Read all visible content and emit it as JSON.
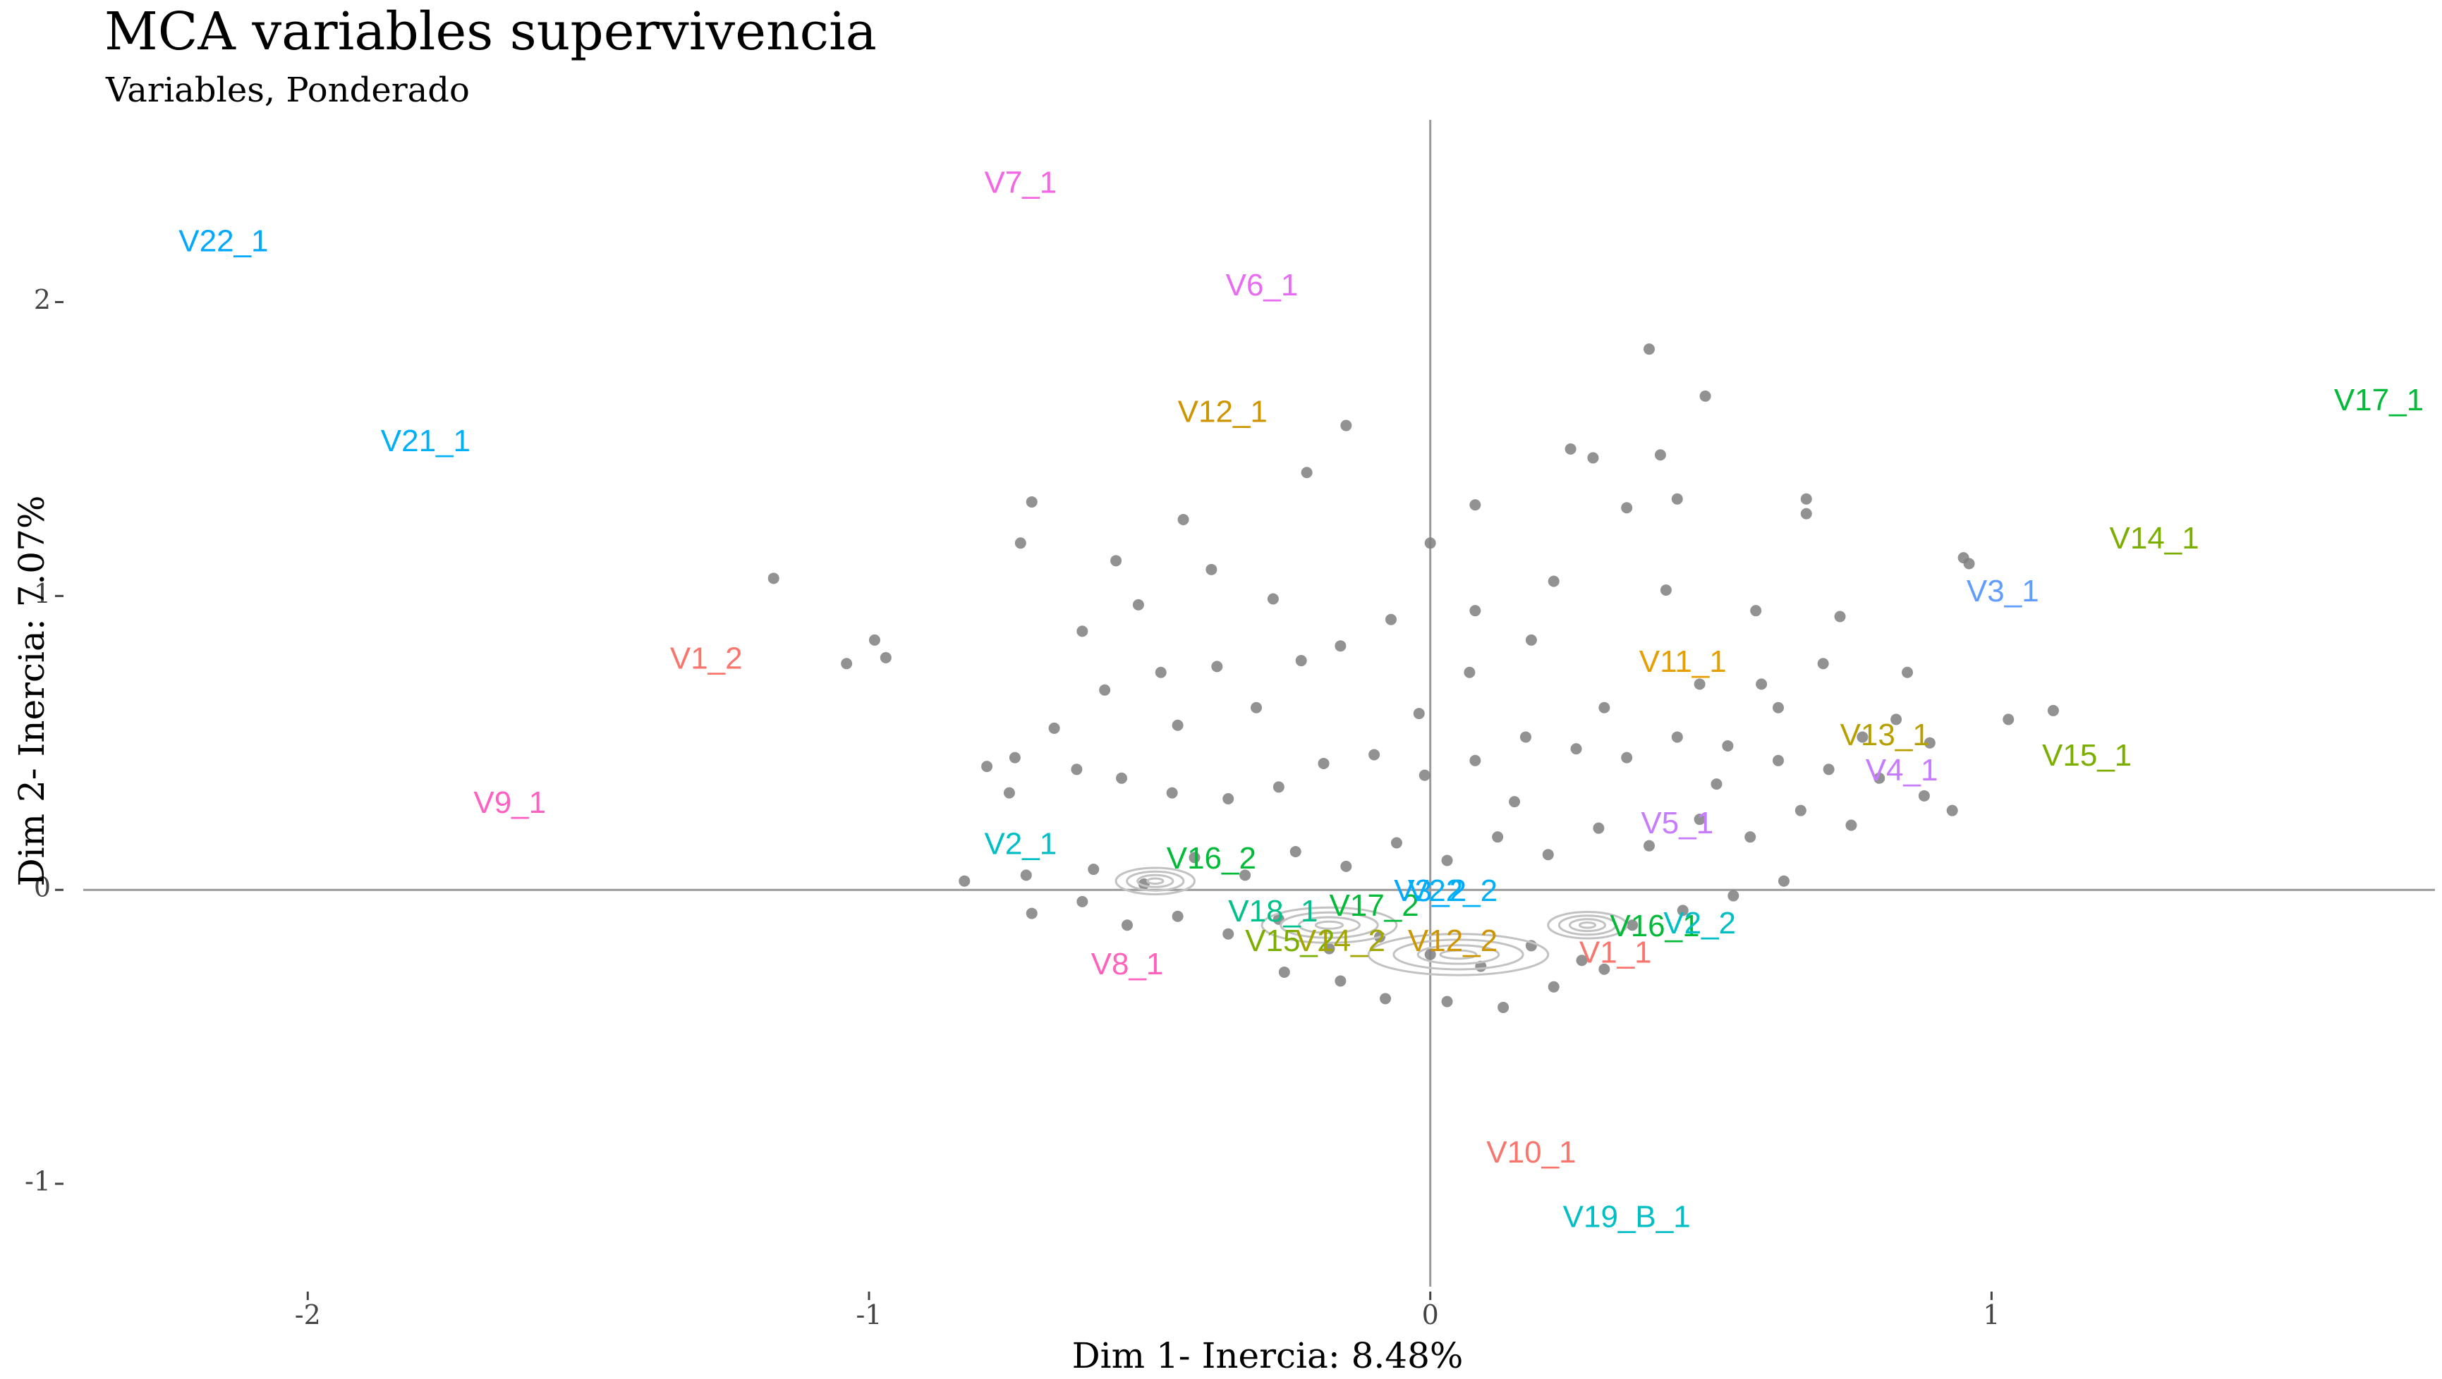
{
  "chart_data": {
    "type": "scatter",
    "title": "MCA variables supervivencia",
    "subtitle": "Variables, Ponderado",
    "xlabel": "Dim 1- Inercia: 8.48%",
    "ylabel": "Dim 2- Inercia: 7.07%",
    "xlim": [
      -2.4,
      1.79
    ],
    "ylim": [
      -1.35,
      2.62
    ],
    "xticks": [
      {
        "value": -2,
        "label": "-2"
      },
      {
        "value": -1,
        "label": "-1"
      },
      {
        "value": 0,
        "label": "0"
      },
      {
        "value": 1,
        "label": "1"
      }
    ],
    "yticks": [
      {
        "value": -1,
        "label": "-1"
      },
      {
        "value": 0,
        "label": "0"
      },
      {
        "value": 1,
        "label": "1"
      },
      {
        "value": 2,
        "label": "2"
      }
    ],
    "reference_lines": {
      "x": 0,
      "y": 0
    },
    "grid": false,
    "legend": "none",
    "individuals": {
      "description": "MCA individual coordinates (approximate cloud)",
      "color": "#7f7f7f",
      "points": [
        [
          -0.83,
          0.03
        ],
        [
          -0.72,
          0.05
        ],
        [
          -0.97,
          0.79
        ],
        [
          -0.99,
          0.85
        ],
        [
          -1.04,
          0.77
        ],
        [
          -1.17,
          1.06
        ],
        [
          -0.71,
          1.32
        ],
        [
          -0.73,
          1.18
        ],
        [
          -0.56,
          1.12
        ],
        [
          -0.44,
          1.26
        ],
        [
          -0.39,
          1.09
        ],
        [
          -0.22,
          1.42
        ],
        [
          -0.15,
          1.58
        ],
        [
          0,
          1.18
        ],
        [
          0.08,
          1.31
        ],
        [
          0.35,
          1.3
        ],
        [
          0.41,
          1.48
        ],
        [
          0.25,
          1.5
        ],
        [
          0.29,
          1.47
        ],
        [
          0.44,
          1.33
        ],
        [
          0.67,
          1.33
        ],
        [
          0.67,
          1.28
        ],
        [
          0.39,
          1.84
        ],
        [
          0.49,
          1.68
        ],
        [
          0.95,
          1.13
        ],
        [
          0.96,
          1.11
        ],
        [
          1.03,
          0.58
        ],
        [
          1.11,
          0.61
        ],
        [
          0.85,
          0.74
        ],
        [
          0.7,
          0.77
        ],
        [
          0.59,
          0.7
        ],
        [
          0.48,
          0.7
        ],
        [
          0.31,
          0.62
        ],
        [
          0.18,
          0.85
        ],
        [
          0.07,
          0.74
        ],
        [
          -0.07,
          0.92
        ],
        [
          -0.16,
          0.83
        ],
        [
          -0.23,
          0.78
        ],
        [
          -0.38,
          0.76
        ],
        [
          -0.48,
          0.74
        ],
        [
          -0.58,
          0.68
        ],
        [
          -0.67,
          0.55
        ],
        [
          -0.74,
          0.45
        ],
        [
          -0.79,
          0.42
        ],
        [
          -0.63,
          0.41
        ],
        [
          -0.55,
          0.38
        ],
        [
          -0.46,
          0.33
        ],
        [
          -0.36,
          0.31
        ],
        [
          -0.27,
          0.35
        ],
        [
          -0.19,
          0.43
        ],
        [
          -0.1,
          0.46
        ],
        [
          -0.01,
          0.39
        ],
        [
          0.08,
          0.44
        ],
        [
          0.17,
          0.52
        ],
        [
          0.26,
          0.48
        ],
        [
          0.35,
          0.45
        ],
        [
          0.44,
          0.52
        ],
        [
          0.53,
          0.49
        ],
        [
          0.62,
          0.44
        ],
        [
          0.71,
          0.41
        ],
        [
          0.8,
          0.38
        ],
        [
          0.88,
          0.32
        ],
        [
          0.75,
          0.22
        ],
        [
          0.66,
          0.27
        ],
        [
          0.57,
          0.18
        ],
        [
          0.48,
          0.24
        ],
        [
          0.39,
          0.15
        ],
        [
          0.3,
          0.21
        ],
        [
          0.21,
          0.12
        ],
        [
          0.12,
          0.18
        ],
        [
          0.03,
          0.1
        ],
        [
          -0.06,
          0.16
        ],
        [
          -0.15,
          0.08
        ],
        [
          -0.24,
          0.13
        ],
        [
          -0.33,
          0.05
        ],
        [
          -0.42,
          0.11
        ],
        [
          -0.51,
          0.02
        ],
        [
          -0.6,
          0.07
        ],
        [
          -0.71,
          -0.08
        ],
        [
          -0.62,
          -0.04
        ],
        [
          -0.54,
          -0.12
        ],
        [
          -0.45,
          -0.09
        ],
        [
          -0.36,
          -0.15
        ],
        [
          -0.27,
          -0.1
        ],
        [
          -0.18,
          -0.2
        ],
        [
          -0.09,
          -0.16
        ],
        [
          0,
          -0.22
        ],
        [
          0.09,
          -0.26
        ],
        [
          0.18,
          -0.19
        ],
        [
          0.27,
          -0.24
        ],
        [
          0.36,
          -0.12
        ],
        [
          0.45,
          -0.07
        ],
        [
          0.54,
          -0.02
        ],
        [
          0.63,
          0.03
        ],
        [
          -0.16,
          -0.31
        ],
        [
          0.03,
          -0.38
        ],
        [
          0.13,
          -0.4
        ],
        [
          -0.08,
          -0.37
        ],
        [
          0.22,
          -0.33
        ],
        [
          -0.26,
          -0.28
        ],
        [
          0.31,
          -0.27
        ],
        [
          0.08,
          0.95
        ],
        [
          -0.28,
          0.99
        ],
        [
          0.22,
          1.05
        ],
        [
          0.42,
          1.02
        ],
        [
          0.58,
          0.95
        ],
        [
          0.73,
          0.93
        ],
        [
          -0.62,
          0.88
        ],
        [
          -0.52,
          0.97
        ],
        [
          0.77,
          0.52
        ],
        [
          0.83,
          0.58
        ],
        [
          0.89,
          0.5
        ],
        [
          -0.75,
          0.33
        ],
        [
          0.93,
          0.27
        ],
        [
          -0.45,
          0.56
        ],
        [
          0.15,
          0.3
        ],
        [
          -0.02,
          0.6
        ],
        [
          0.51,
          0.36
        ],
        [
          -0.31,
          0.62
        ],
        [
          0.62,
          0.62
        ]
      ]
    },
    "contours": [
      {
        "x": -0.49,
        "y": 0.03,
        "rx": 0.07,
        "ry": 0.045
      },
      {
        "x": 0.28,
        "y": -0.12,
        "rx": 0.07,
        "ry": 0.045
      },
      {
        "x": 0.05,
        "y": -0.22,
        "rx": 0.16,
        "ry": 0.07
      },
      {
        "x": -0.18,
        "y": -0.12,
        "rx": 0.12,
        "ry": 0.06
      }
    ],
    "categories": [
      {
        "label": "V22_1",
        "x": -2.15,
        "y": 2.2,
        "color": "#00A9FF"
      },
      {
        "label": "V7_1",
        "x": -0.73,
        "y": 2.4,
        "color": "#F564E3"
      },
      {
        "label": "V6_1",
        "x": -0.3,
        "y": 2.05,
        "color": "#E76BF3"
      },
      {
        "label": "V21_1",
        "x": -1.79,
        "y": 1.52,
        "color": "#00B0F6"
      },
      {
        "label": "V12_1",
        "x": -0.37,
        "y": 1.62,
        "color": "#CD9600"
      },
      {
        "label": "V17_1",
        "x": 1.69,
        "y": 1.66,
        "color": "#00BA38"
      },
      {
        "label": "V14_1",
        "x": 1.29,
        "y": 1.19,
        "color": "#7CAE00"
      },
      {
        "label": "V3_1",
        "x": 1.02,
        "y": 1.01,
        "color": "#619CFF"
      },
      {
        "label": "V1_2",
        "x": -1.29,
        "y": 0.78,
        "color": "#F8766D"
      },
      {
        "label": "V11_1",
        "x": 0.45,
        "y": 0.77,
        "color": "#E69F00"
      },
      {
        "label": "V13_1",
        "x": 0.81,
        "y": 0.52,
        "color": "#B79F00"
      },
      {
        "label": "V15_1",
        "x": 1.17,
        "y": 0.45,
        "color": "#7CAE00"
      },
      {
        "label": "V4_1",
        "x": 0.84,
        "y": 0.4,
        "color": "#C77CFF"
      },
      {
        "label": "V9_1",
        "x": -1.64,
        "y": 0.29,
        "color": "#FF61C3"
      },
      {
        "label": "V5_1",
        "x": 0.44,
        "y": 0.22,
        "color": "#C77CFF"
      },
      {
        "label": "V2_1",
        "x": -0.73,
        "y": 0.15,
        "color": "#00BFC4"
      },
      {
        "label": "V16_2",
        "x": -0.39,
        "y": 0.1,
        "color": "#00BA38"
      },
      {
        "label": "V18_1",
        "x": -0.28,
        "y": -0.08,
        "color": "#00C08B"
      },
      {
        "label": "V17_2",
        "x": -0.1,
        "y": -0.06,
        "color": "#00BA38"
      },
      {
        "label": "V3_2",
        "x": 0,
        "y": -0.01,
        "color": "#00A9FF"
      },
      {
        "label": "V22_2",
        "x": 0.04,
        "y": -0.01,
        "color": "#00B0F6"
      },
      {
        "label": "V15_2",
        "x": -0.25,
        "y": -0.18,
        "color": "#7CAE00"
      },
      {
        "label": "V14_2",
        "x": -0.16,
        "y": -0.18,
        "color": "#A3A500"
      },
      {
        "label": "V12_2",
        "x": 0.04,
        "y": -0.18,
        "color": "#CD9600"
      },
      {
        "label": "V16_1",
        "x": 0.4,
        "y": -0.13,
        "color": "#00BA38"
      },
      {
        "label": "V2_2",
        "x": 0.48,
        "y": -0.12,
        "color": "#00BFC4"
      },
      {
        "label": "V1_1",
        "x": 0.33,
        "y": -0.22,
        "color": "#F8766D"
      },
      {
        "label": "V8_1",
        "x": -0.54,
        "y": -0.26,
        "color": "#FF62BC"
      },
      {
        "label": "V10_1",
        "x": 0.18,
        "y": -0.9,
        "color": "#F8766D"
      },
      {
        "label": "V19_B_1",
        "x": 0.35,
        "y": -1.12,
        "color": "#00BFC4"
      }
    ]
  }
}
